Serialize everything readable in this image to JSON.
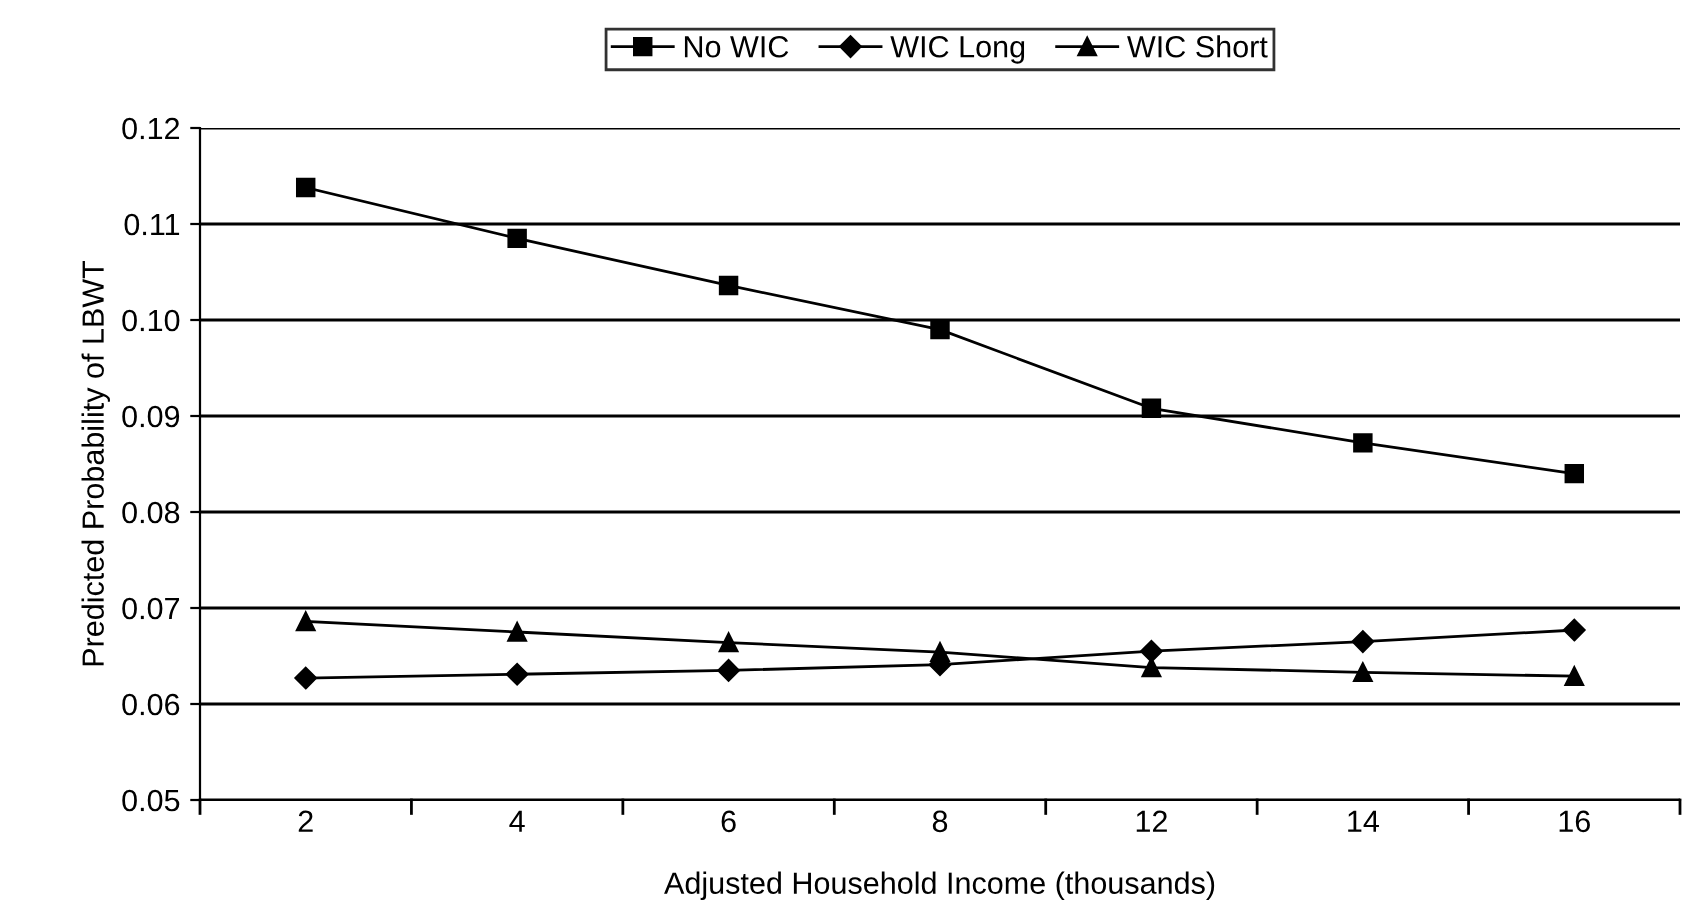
{
  "chart_data": {
    "type": "line",
    "xlabel": "Adjusted Household Income (thousands)",
    "ylabel": "Predicted Probability of LBWT",
    "categories": [
      "2",
      "4",
      "6",
      "8",
      "12",
      "14",
      "16"
    ],
    "series": [
      {
        "name": "No WIC",
        "color": "#000000",
        "marker": "square",
        "values": [
          0.1138,
          0.1085,
          0.1036,
          0.099,
          0.0908,
          0.0872,
          0.084
        ]
      },
      {
        "name": "WIC Long",
        "color": "#000000",
        "marker": "diamond",
        "values": [
          0.0627,
          0.0631,
          0.0635,
          0.0641,
          0.0655,
          0.0665,
          0.0677
        ]
      },
      {
        "name": "WIC Short",
        "color": "#000000",
        "marker": "triangle",
        "values": [
          0.0686,
          0.0675,
          0.0664,
          0.0654,
          0.0638,
          0.0633,
          0.0629
        ]
      }
    ],
    "ylim": [
      0.05,
      0.12
    ],
    "yticks": [
      0.05,
      0.06,
      0.07,
      0.08,
      0.09,
      {
        "value": 0.1,
        "label": "0.10"
      },
      0.11,
      0.12
    ],
    "grid": "y",
    "legend": "top",
    "line_style": "solid"
  }
}
